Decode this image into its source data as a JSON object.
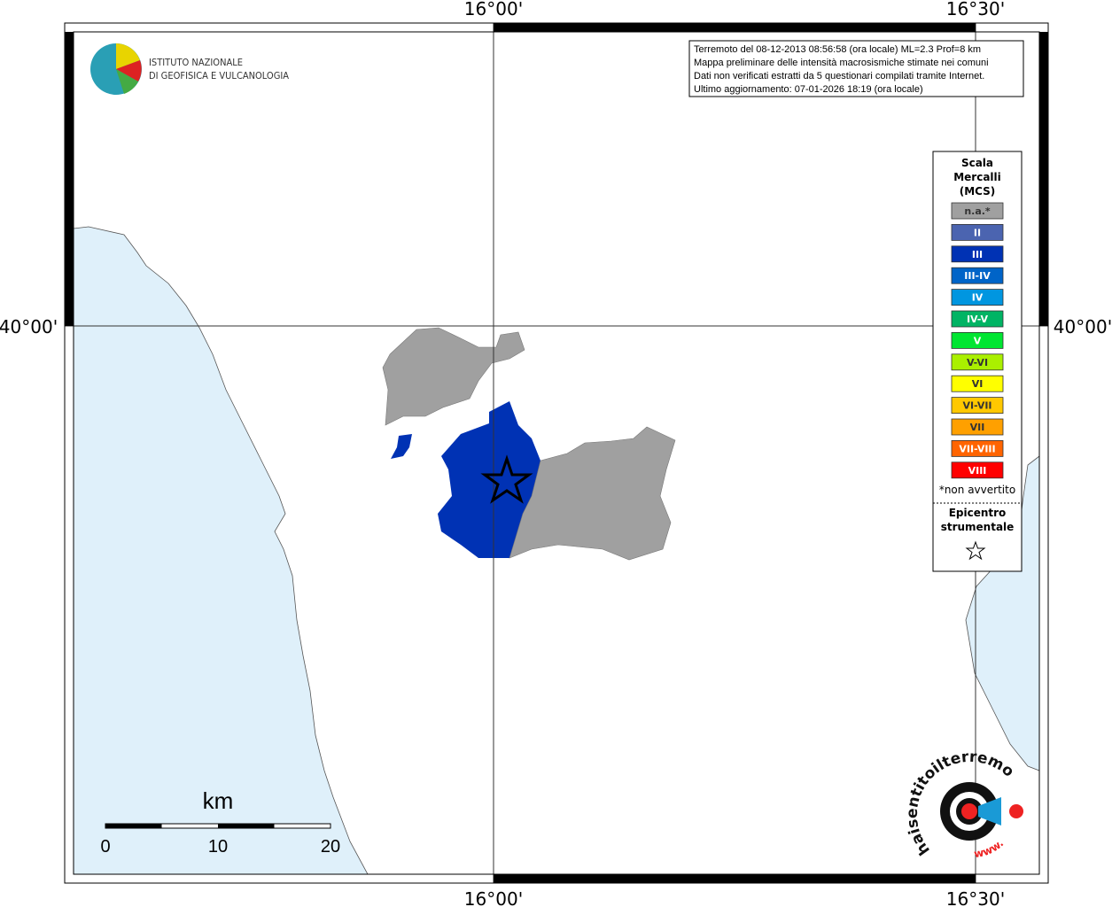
{
  "map": {
    "lon_labels": [
      "16°00'",
      "16°30'"
    ],
    "lat_labels": [
      "40°00'"
    ],
    "info_lines": [
      "Terremoto del 08-12-2013 08:56:58 (ora locale) ML=2.3 Prof=8 km",
      "Mappa preliminare delle intensità macrosismiche stimate nei comuni",
      "Dati non verificati estratti da 5 questionari compilati tramite Internet.",
      "Ultimo aggiornamento: 07-01-2026 18:19 (ora locale)"
    ],
    "logo_lines": [
      "ISTITUTO NAZIONALE",
      "DI GEOFISICA E VULCANOLOGIA"
    ],
    "legend": {
      "title": [
        "Scala",
        "Mercalli",
        "(MCS)"
      ],
      "items": [
        {
          "label": "n.a.*",
          "color": "#a0a0a0"
        },
        {
          "label": "II",
          "color": "#4b64b0"
        },
        {
          "label": "III",
          "color": "#0032b4"
        },
        {
          "label": "III-IV",
          "color": "#0064c8"
        },
        {
          "label": "IV",
          "color": "#0096e0"
        },
        {
          "label": "IV-V",
          "color": "#00b464"
        },
        {
          "label": "V",
          "color": "#00e632"
        },
        {
          "label": "V-VI",
          "color": "#aaf000"
        },
        {
          "label": "VI",
          "color": "#ffff00"
        },
        {
          "label": "VI-VII",
          "color": "#ffc800"
        },
        {
          "label": "VII",
          "color": "#ffa000"
        },
        {
          "label": "VII-VIII",
          "color": "#ff6400"
        },
        {
          "label": "VIII",
          "color": "#ff0000"
        }
      ],
      "note": "*non avvertito",
      "epicenter": [
        "Epicentro",
        "strumentale"
      ]
    },
    "scalebar": {
      "unit": "km",
      "ticks": [
        "0",
        "10",
        "20"
      ]
    },
    "site_logo": {
      "name": "haisentitoilterremoto.it",
      "www": "www."
    }
  }
}
